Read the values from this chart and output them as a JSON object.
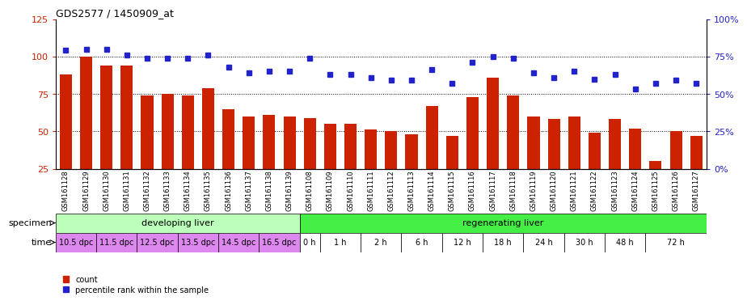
{
  "title": "GDS2577 / 1450909_at",
  "samples": [
    "GSM161128",
    "GSM161129",
    "GSM161130",
    "GSM161131",
    "GSM161132",
    "GSM161133",
    "GSM161134",
    "GSM161135",
    "GSM161136",
    "GSM161137",
    "GSM161138",
    "GSM161139",
    "GSM161108",
    "GSM161109",
    "GSM161110",
    "GSM161111",
    "GSM161112",
    "GSM161113",
    "GSM161114",
    "GSM161115",
    "GSM161116",
    "GSM161117",
    "GSM161118",
    "GSM161119",
    "GSM161120",
    "GSM161121",
    "GSM161122",
    "GSM161123",
    "GSM161124",
    "GSM161125",
    "GSM161126",
    "GSM161127"
  ],
  "counts": [
    88,
    100,
    94,
    94,
    74,
    75,
    74,
    79,
    65,
    60,
    61,
    60,
    59,
    55,
    55,
    51,
    50,
    48,
    67,
    47,
    73,
    86,
    74,
    60,
    58,
    60,
    49,
    58,
    52,
    30,
    50,
    47
  ],
  "percentiles": [
    79,
    80,
    80,
    76,
    74,
    74,
    74,
    76,
    68,
    64,
    65,
    65,
    74,
    63,
    63,
    61,
    59,
    59,
    66,
    57,
    71,
    75,
    74,
    64,
    61,
    65,
    60,
    63,
    53,
    57,
    59,
    57
  ],
  "ylim_left": [
    25,
    125
  ],
  "ylim_right": [
    0,
    100
  ],
  "yticks_left": [
    25,
    50,
    75,
    100,
    125
  ],
  "yticks_right": [
    0,
    25,
    50,
    75,
    100
  ],
  "ytick_labels_right": [
    "0%",
    "25%",
    "50%",
    "75%",
    "100%"
  ],
  "bar_color": "#cc2200",
  "dot_color": "#2222cc",
  "specimen_groups": [
    {
      "label": "developing liver",
      "start": 0,
      "end": 12,
      "color": "#bbffbb"
    },
    {
      "label": "regenerating liver",
      "start": 12,
      "end": 32,
      "color": "#44ee44"
    }
  ],
  "time_labels": [
    {
      "label": "10.5 dpc",
      "start": 0,
      "end": 2,
      "dpc": true
    },
    {
      "label": "11.5 dpc",
      "start": 2,
      "end": 4,
      "dpc": true
    },
    {
      "label": "12.5 dpc",
      "start": 4,
      "end": 6,
      "dpc": true
    },
    {
      "label": "13.5 dpc",
      "start": 6,
      "end": 8,
      "dpc": true
    },
    {
      "label": "14.5 dpc",
      "start": 8,
      "end": 10,
      "dpc": true
    },
    {
      "label": "16.5 dpc",
      "start": 10,
      "end": 12,
      "dpc": true
    },
    {
      "label": "0 h",
      "start": 12,
      "end": 13,
      "dpc": false
    },
    {
      "label": "1 h",
      "start": 13,
      "end": 15,
      "dpc": false
    },
    {
      "label": "2 h",
      "start": 15,
      "end": 17,
      "dpc": false
    },
    {
      "label": "6 h",
      "start": 17,
      "end": 19,
      "dpc": false
    },
    {
      "label": "12 h",
      "start": 19,
      "end": 21,
      "dpc": false
    },
    {
      "label": "18 h",
      "start": 21,
      "end": 23,
      "dpc": false
    },
    {
      "label": "24 h",
      "start": 23,
      "end": 25,
      "dpc": false
    },
    {
      "label": "30 h",
      "start": 25,
      "end": 27,
      "dpc": false
    },
    {
      "label": "48 h",
      "start": 27,
      "end": 29,
      "dpc": false
    },
    {
      "label": "72 h",
      "start": 29,
      "end": 32,
      "dpc": false
    }
  ],
  "time_color_dpc": "#dd88ee",
  "time_color_h": "#ffffff",
  "bg_color": "#ffffff",
  "tick_color_left": "#cc2200",
  "tick_color_right": "#2222cc"
}
